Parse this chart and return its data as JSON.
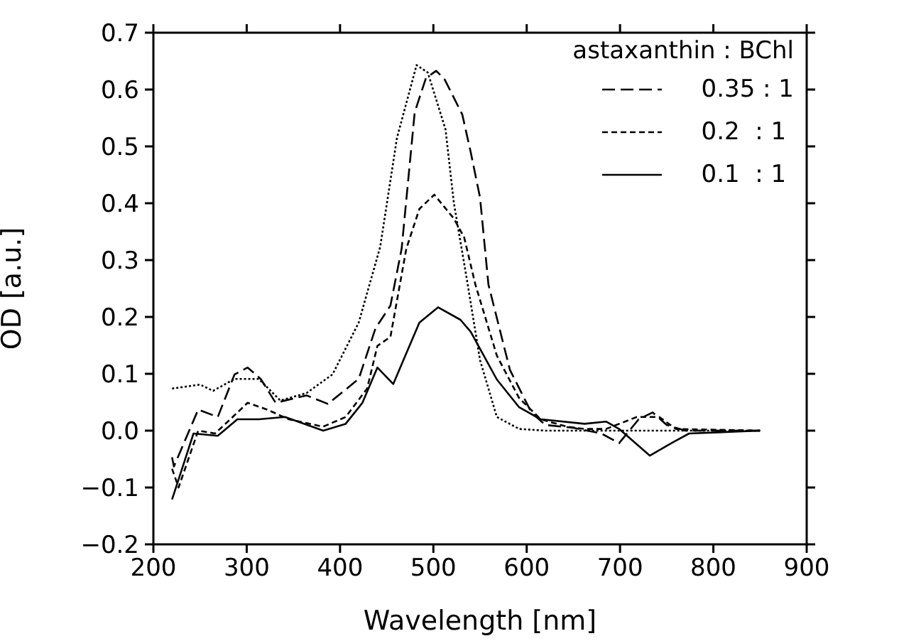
{
  "chart_data": {
    "type": "line",
    "xlabel": "Wavelength [nm]",
    "ylabel": "OD [a.u.]",
    "legend_title": "astaxanthin : BChl",
    "legend": "top right",
    "xlim": [
      200,
      900
    ],
    "xticks": [
      200,
      300,
      400,
      500,
      600,
      700,
      800,
      900
    ],
    "ylim": [
      -0.2,
      0.7
    ],
    "yticks": [
      {
        "value": -0.2,
        "label": "−0.2"
      },
      {
        "value": -0.1,
        "label": "−0.1"
      },
      {
        "value": 0,
        "label": "0.0"
      },
      {
        "value": 0.1,
        "label": "0.1"
      },
      {
        "value": 0.2,
        "label": "0.2"
      },
      {
        "value": 0.3,
        "label": "0.3"
      },
      {
        "value": 0.4,
        "label": "0.4"
      },
      {
        "value": 0.5,
        "label": "0.5"
      },
      {
        "value": 0.6,
        "label": "0.6"
      },
      {
        "value": 0.7,
        "label": "0.7"
      }
    ],
    "series": [
      {
        "name": "0.35 : 1",
        "color": "#000000",
        "line_style": "dashed",
        "x": [
          220,
          222,
          248,
          269,
          287,
          301,
          315,
          331,
          364,
          387,
          420,
          438,
          454,
          466,
          480,
          492,
          503,
          512,
          531,
          540,
          550,
          559,
          582,
          605,
          620,
          650,
          680,
          699,
          720,
          735,
          750,
          770,
          850
        ],
        "values": [
          -0.047,
          -0.063,
          0.037,
          0.024,
          0.099,
          0.111,
          0.091,
          0.049,
          0.062,
          0.047,
          0.091,
          0.18,
          0.22,
          0.32,
          0.56,
          0.62,
          0.633,
          0.618,
          0.556,
          0.49,
          0.41,
          0.257,
          0.107,
          0.032,
          0.01,
          0.005,
          -0.005,
          -0.022,
          0.02,
          0.032,
          0.01,
          0,
          0
        ]
      },
      {
        "name": "0.2  : 1",
        "color": "#000000",
        "line_style": "dashed",
        "x": [
          220,
          227,
          248,
          266,
          285,
          301,
          322,
          345,
          382,
          406,
          429,
          440,
          454,
          471,
          485,
          501,
          522,
          533,
          545,
          568,
          592,
          615,
          643,
          662,
          685,
          718,
          742,
          760,
          850
        ],
        "values": [
          -0.067,
          -0.1,
          0,
          -0.005,
          0.024,
          0.049,
          0.037,
          0.02,
          0.007,
          0.024,
          0.074,
          0.149,
          0.165,
          0.32,
          0.39,
          0.415,
          0.373,
          0.34,
          0.257,
          0.132,
          0.057,
          0.02,
          0.007,
          0.003,
          0.003,
          0.024,
          0.024,
          0.003,
          0
        ]
      },
      {
        "name": "0.1  : 1",
        "color": "#000000",
        "line_style": "solid",
        "x": [
          220,
          243,
          269,
          290,
          313,
          341,
          382,
          406,
          424,
          440,
          457,
          485,
          505,
          529,
          540,
          568,
          592,
          615,
          662,
          685,
          699,
          713,
          732,
          755,
          774,
          850
        ],
        "values": [
          -0.121,
          -0.005,
          -0.009,
          0.02,
          0.02,
          0.024,
          0,
          0.012,
          0.049,
          0.111,
          0.082,
          0.19,
          0.217,
          0.195,
          0.174,
          0.09,
          0.041,
          0.02,
          0.012,
          0.016,
          0.003,
          -0.017,
          -0.044,
          -0.022,
          -0.005,
          0
        ]
      },
      {
        "color": "#000000",
        "line_style": "dotted",
        "x": [
          220,
          250,
          264,
          287,
          313,
          336,
          364,
          392,
          420,
          443,
          461,
          482,
          494,
          513,
          522,
          536,
          550,
          568,
          592,
          620,
          850
        ],
        "values": [
          0.074,
          0.081,
          0.07,
          0.091,
          0.091,
          0.053,
          0.066,
          0.099,
          0.19,
          0.323,
          0.515,
          0.643,
          0.63,
          0.53,
          0.4,
          0.265,
          0.124,
          0.024,
          0.003,
          0,
          0
        ]
      }
    ]
  }
}
